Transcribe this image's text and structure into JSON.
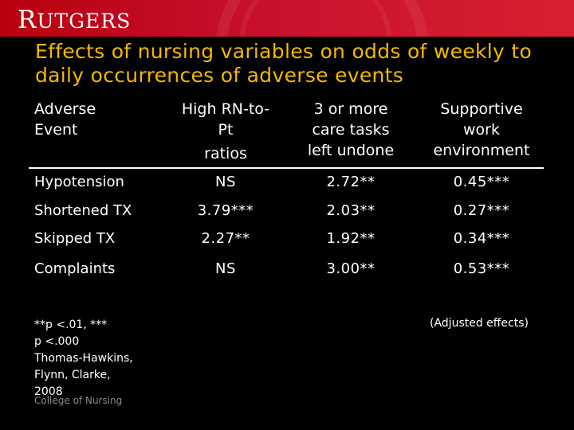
{
  "brand": {
    "logo_text": "RUTGERS",
    "footer_text": "College of Nursing"
  },
  "slide": {
    "title": "Effects of nursing variables on odds of weekly to daily occurrences of adverse events"
  },
  "table": {
    "header_event": [
      "Adverse",
      "Event"
    ],
    "header_rn": [
      "High RN-to-",
      "Pt",
      "ratios"
    ],
    "header_tasks": [
      "3 or more",
      "care tasks",
      "left undone"
    ],
    "header_env": [
      "Supportive",
      "work",
      "environment"
    ],
    "rows": [
      {
        "event": "Hypotension",
        "rn": "NS",
        "tasks": "2.72**",
        "env": "0.45***"
      },
      {
        "event": "Shortened TX",
        "rn": "3.79***",
        "tasks": "2.03**",
        "env": "0.27***"
      },
      {
        "event": "Skipped TX",
        "rn": "2.27**",
        "tasks": "1.92**",
        "env": "0.34***"
      },
      {
        "event": "Complaints",
        "rn": "NS",
        "tasks": "3.00**",
        "env": "0.53***"
      }
    ]
  },
  "footnote": {
    "lines": [
      "**p <.01, ***",
      "p <.000",
      "Thomas-Hawkins,",
      "Flynn, Clarke,",
      "2008"
    ],
    "adjusted": "(Adjusted effects)"
  }
}
